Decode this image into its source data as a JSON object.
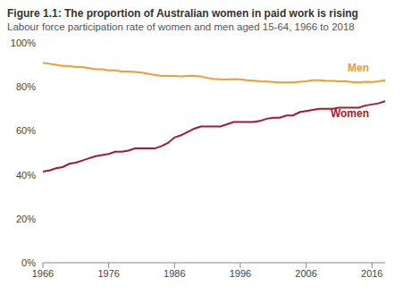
{
  "chart_data": {
    "type": "line",
    "title": "Figure 1.1: The proportion of Australian women in paid work is rising",
    "subtitle": "Labour force participation rate of women and men aged 15-64, 1966 to 2018",
    "x": [
      1966,
      1967,
      1968,
      1969,
      1970,
      1971,
      1972,
      1973,
      1974,
      1975,
      1976,
      1977,
      1978,
      1979,
      1980,
      1981,
      1982,
      1983,
      1984,
      1985,
      1986,
      1987,
      1988,
      1989,
      1990,
      1991,
      1992,
      1993,
      1994,
      1995,
      1996,
      1997,
      1998,
      1999,
      2000,
      2001,
      2002,
      2003,
      2004,
      2005,
      2006,
      2007,
      2008,
      2009,
      2010,
      2011,
      2012,
      2013,
      2014,
      2015,
      2016,
      2017,
      2018
    ],
    "series": [
      {
        "name": "Men",
        "color": "#f39c2e",
        "values": [
          91,
          90.5,
          90,
          89.5,
          89.5,
          89,
          89,
          88.5,
          88,
          88,
          87.5,
          87.5,
          87,
          87,
          86.8,
          86.5,
          86,
          85.5,
          85,
          85,
          85,
          84.8,
          85,
          85,
          84.8,
          84,
          83.6,
          83.4,
          83.3,
          83.5,
          83.4,
          83,
          82.8,
          82.5,
          82.4,
          82.2,
          82,
          82,
          82,
          82.3,
          82.5,
          83,
          83,
          82.8,
          82.7,
          82.5,
          82.5,
          82.2,
          82,
          82.3,
          82.2,
          82.5,
          83
        ]
      },
      {
        "name": "Women",
        "color": "#a6192e",
        "values": [
          41.5,
          42,
          43,
          43.5,
          45,
          45.5,
          46.5,
          47.5,
          48.5,
          49,
          49.5,
          50.5,
          50.5,
          51,
          52,
          52,
          52,
          52,
          53,
          54.5,
          57,
          58,
          59.5,
          61,
          62,
          62,
          62,
          62,
          63,
          64,
          64,
          64,
          64,
          64.5,
          65.5,
          66,
          66,
          67,
          67,
          68.5,
          69,
          69.5,
          70,
          70,
          70,
          70.5,
          70.5,
          70.5,
          70.5,
          71.5,
          72,
          72.5,
          73.5
        ]
      }
    ],
    "xlim": [
      1966,
      2018
    ],
    "xticks": [
      1966,
      1976,
      1986,
      1996,
      2006,
      2016
    ],
    "ylim": [
      0,
      100
    ],
    "yticks": [
      {
        "value": 0,
        "label": "0%"
      },
      {
        "value": 20,
        "label": "20%"
      },
      {
        "value": 40,
        "label": "40%"
      },
      {
        "value": 60,
        "label": "60%"
      },
      {
        "value": 80,
        "label": "80%"
      },
      {
        "value": 100,
        "label": "100%"
      }
    ],
    "grid": false
  }
}
